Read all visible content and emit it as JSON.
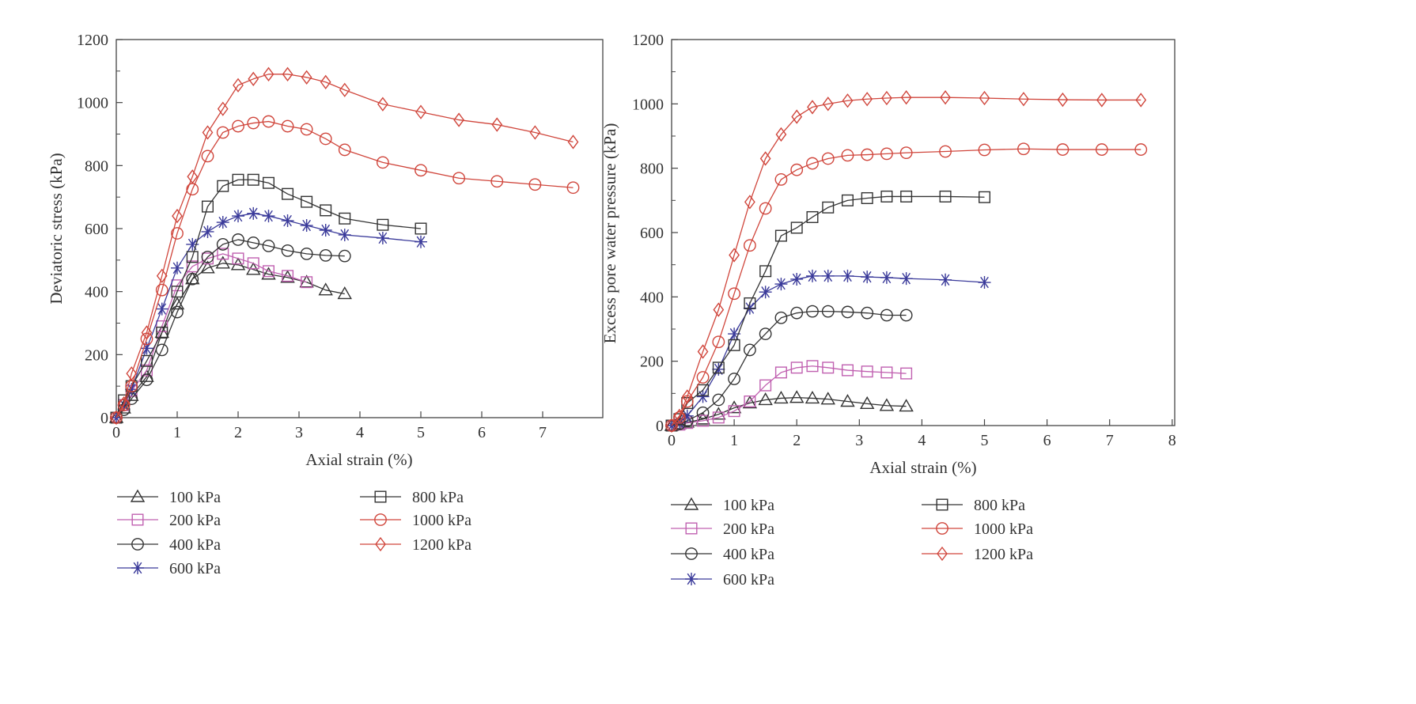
{
  "chart_data": [
    {
      "type": "line",
      "xlabel": "Axial strain (%)",
      "ylabel": "Deviatoric stress (kPa)",
      "xlim": [
        0,
        7.95
      ],
      "ylim": [
        0,
        1200
      ],
      "xticks": [
        0,
        1,
        2,
        3,
        4,
        5,
        6,
        7
      ],
      "yticks": [
        0,
        200,
        400,
        600,
        800,
        1000,
        1200
      ],
      "grid": false,
      "legend_position": "below",
      "series": [
        {
          "name": "100 kPa",
          "marker": "triangle",
          "color": "#333333",
          "x": [
            0,
            0.125,
            0.25,
            0.5,
            0.75,
            1,
            1.25,
            1.5,
            1.75,
            2,
            2.25,
            2.5,
            2.8125,
            3.125,
            3.4375,
            3.75
          ],
          "y": [
            0,
            30,
            70,
            130,
            270,
            360,
            440,
            475,
            490,
            485,
            470,
            455,
            445,
            430,
            405,
            393
          ]
        },
        {
          "name": "200 kPa",
          "marker": "square",
          "color": "#c060b0",
          "x": [
            0,
            0.125,
            0.25,
            0.5,
            0.75,
            1,
            1.25,
            1.5,
            1.75,
            2,
            2.25,
            2.5,
            2.8125,
            3.125
          ],
          "y": [
            0,
            40,
            85,
            150,
            290,
            420,
            480,
            505,
            520,
            505,
            490,
            465,
            450,
            430
          ]
        },
        {
          "name": "400 kPa",
          "marker": "circle",
          "color": "#333333",
          "x": [
            0,
            0.125,
            0.25,
            0.5,
            0.75,
            1,
            1.25,
            1.5,
            1.75,
            2,
            2.25,
            2.5,
            2.8125,
            3.125,
            3.4375,
            3.75
          ],
          "y": [
            0,
            25,
            60,
            120,
            215,
            335,
            440,
            510,
            550,
            565,
            555,
            545,
            530,
            520,
            515,
            513
          ]
        },
        {
          "name": "600 kPa",
          "marker": "asterisk",
          "color": "#3a3a9a",
          "x": [
            0,
            0.125,
            0.25,
            0.5,
            0.75,
            1,
            1.25,
            1.5,
            1.75,
            2,
            2.25,
            2.5,
            2.8125,
            3.125,
            3.4375,
            3.75,
            4.375,
            5
          ],
          "y": [
            0,
            40,
            90,
            220,
            345,
            475,
            550,
            590,
            620,
            640,
            648,
            640,
            625,
            610,
            595,
            580,
            570,
            558
          ]
        },
        {
          "name": "800 kPa",
          "marker": "square",
          "color": "#333333",
          "x": [
            0,
            0.125,
            0.25,
            0.5,
            0.75,
            1,
            1.25,
            1.5,
            1.75,
            2,
            2.25,
            2.5,
            2.8125,
            3.125,
            3.4375,
            3.75,
            4.375,
            5
          ],
          "y": [
            0,
            55,
            100,
            180,
            270,
            400,
            510,
            670,
            735,
            755,
            755,
            745,
            710,
            685,
            658,
            632,
            612,
            600
          ]
        },
        {
          "name": "1000 kPa",
          "marker": "circle",
          "color": "#d0463c",
          "x": [
            0,
            0.125,
            0.25,
            0.5,
            0.75,
            1,
            1.25,
            1.5,
            1.75,
            2,
            2.25,
            2.5,
            2.8125,
            3.125,
            3.4375,
            3.75,
            4.375,
            5,
            5.625,
            6.25,
            6.875,
            7.5
          ],
          "y": [
            0,
            40,
            100,
            250,
            405,
            585,
            725,
            830,
            905,
            925,
            935,
            940,
            925,
            915,
            885,
            850,
            810,
            785,
            760,
            750,
            740,
            730
          ]
        },
        {
          "name": "1200 kPa",
          "marker": "diamond",
          "color": "#d0463c",
          "x": [
            0,
            0.125,
            0.25,
            0.5,
            0.75,
            1,
            1.25,
            1.5,
            1.75,
            2,
            2.25,
            2.5,
            2.8125,
            3.125,
            3.4375,
            3.75,
            4.375,
            5,
            5.625,
            6.25,
            6.875,
            7.5
          ],
          "y": [
            0,
            45,
            140,
            270,
            450,
            640,
            765,
            905,
            980,
            1055,
            1075,
            1090,
            1090,
            1080,
            1065,
            1040,
            995,
            970,
            945,
            930,
            905,
            875
          ]
        }
      ]
    },
    {
      "type": "line",
      "xlabel": "Axial strain (%)",
      "ylabel": "Excess pore water pressure (kPa)",
      "xlim": [
        0,
        8.05
      ],
      "ylim": [
        0,
        1200
      ],
      "xticks": [
        0,
        1,
        2,
        3,
        4,
        5,
        6,
        7,
        8
      ],
      "yticks": [
        0,
        200,
        400,
        600,
        800,
        1000,
        1200
      ],
      "grid": false,
      "legend_position": "below",
      "series": [
        {
          "name": "100 kPa",
          "marker": "triangle",
          "color": "#333333",
          "x": [
            0,
            0.125,
            0.25,
            0.5,
            0.75,
            1,
            1.25,
            1.5,
            1.75,
            2,
            2.25,
            2.5,
            2.8125,
            3.125,
            3.4375,
            3.75
          ],
          "y": [
            0,
            5,
            10,
            20,
            35,
            55,
            70,
            80,
            85,
            87,
            85,
            82,
            75,
            68,
            62,
            60
          ]
        },
        {
          "name": "200 kPa",
          "marker": "square",
          "color": "#c060b0",
          "x": [
            0,
            0.125,
            0.25,
            0.5,
            0.75,
            1,
            1.25,
            1.5,
            1.75,
            2,
            2.25,
            2.5,
            2.8125,
            3.125,
            3.4375,
            3.75
          ],
          "y": [
            0,
            3,
            8,
            15,
            25,
            45,
            75,
            125,
            165,
            180,
            185,
            180,
            172,
            168,
            165,
            162
          ]
        },
        {
          "name": "400 kPa",
          "marker": "circle",
          "color": "#333333",
          "x": [
            0,
            0.125,
            0.25,
            0.5,
            0.75,
            1,
            1.25,
            1.5,
            1.75,
            2,
            2.25,
            2.5,
            2.8125,
            3.125,
            3.4375,
            3.75
          ],
          "y": [
            0,
            5,
            15,
            40,
            80,
            145,
            235,
            285,
            335,
            350,
            355,
            355,
            353,
            350,
            343,
            343
          ]
        },
        {
          "name": "600 kPa",
          "marker": "asterisk",
          "color": "#3a3a9a",
          "x": [
            0,
            0.125,
            0.25,
            0.5,
            0.75,
            1,
            1.25,
            1.5,
            1.75,
            2,
            2.25,
            2.5,
            2.8125,
            3.125,
            3.4375,
            3.75,
            4.375,
            5
          ],
          "y": [
            0,
            10,
            30,
            90,
            175,
            285,
            365,
            415,
            440,
            455,
            465,
            465,
            465,
            462,
            460,
            457,
            453,
            445
          ]
        },
        {
          "name": "800 kPa",
          "marker": "square",
          "color": "#333333",
          "x": [
            0,
            0.125,
            0.25,
            0.5,
            0.75,
            1,
            1.25,
            1.5,
            1.75,
            2,
            2.25,
            2.5,
            2.8125,
            3.125,
            3.4375,
            3.75,
            4.375,
            5
          ],
          "y": [
            0,
            20,
            70,
            110,
            180,
            250,
            380,
            480,
            590,
            615,
            648,
            678,
            700,
            707,
            712,
            712,
            712,
            710
          ]
        },
        {
          "name": "1000 kPa",
          "marker": "circle",
          "color": "#d0463c",
          "x": [
            0,
            0.125,
            0.25,
            0.5,
            0.75,
            1,
            1.25,
            1.5,
            1.75,
            2,
            2.25,
            2.5,
            2.8125,
            3.125,
            3.4375,
            3.75,
            4.375,
            5,
            5.625,
            6.25,
            6.875,
            7.5
          ],
          "y": [
            0,
            25,
            75,
            150,
            260,
            410,
            560,
            675,
            765,
            795,
            815,
            830,
            840,
            842,
            845,
            848,
            852,
            857,
            860,
            858,
            858,
            858
          ]
        },
        {
          "name": "1200 kPa",
          "marker": "diamond",
          "color": "#d0463c",
          "x": [
            0,
            0.125,
            0.25,
            0.5,
            0.75,
            1,
            1.25,
            1.5,
            1.75,
            2,
            2.25,
            2.5,
            2.8125,
            3.125,
            3.4375,
            3.75,
            4.375,
            5,
            5.625,
            6.25,
            6.875,
            7.5
          ],
          "y": [
            0,
            30,
            90,
            230,
            360,
            530,
            695,
            830,
            905,
            960,
            990,
            1000,
            1010,
            1015,
            1018,
            1020,
            1020,
            1018,
            1015,
            1013,
            1012,
            1012
          ]
        }
      ]
    }
  ]
}
